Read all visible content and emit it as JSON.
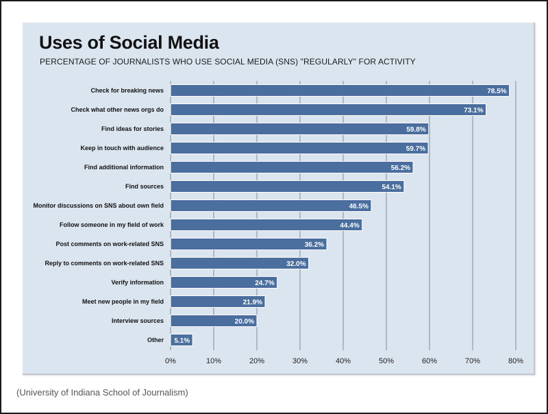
{
  "chart_data": {
    "type": "bar",
    "orientation": "horizontal",
    "title": "Uses of Social Media",
    "subtitle": "PERCENTAGE OF JOURNALISTS WHO USE SOCIAL MEDIA (SNS) \"REGULARLY\" FOR ACTIVITY",
    "categories": [
      "Check for breaking news",
      "Check what other news orgs do",
      "Find ideas for stories",
      "Keep in touch with audience",
      "Find additional information",
      "Find sources",
      "Monitor discussions on SNS about own field",
      "Follow someone in my field of work",
      "Post comments on work-related SNS",
      "Reply to comments on work-related SNS",
      "Verify information",
      "Meet new people in my field",
      "Interview sources",
      "Other"
    ],
    "values": [
      78.5,
      73.1,
      59.8,
      59.7,
      56.2,
      54.1,
      46.5,
      44.4,
      36.2,
      32.0,
      24.7,
      21.9,
      20.0,
      5.1
    ],
    "value_labels": [
      "78.5%",
      "73.1%",
      "59.8%",
      "59.7%",
      "56.2%",
      "54.1%",
      "46.5%",
      "44.4%",
      "36.2%",
      "32.0%",
      "24.7%",
      "21.9%",
      "20.0%",
      "5.1%"
    ],
    "xlim": [
      0,
      80
    ],
    "xticks": [
      0,
      10,
      20,
      30,
      40,
      50,
      60,
      70,
      80
    ],
    "xtick_labels": [
      "0%",
      "10%",
      "20%",
      "30%",
      "40%",
      "50%",
      "60%",
      "70%",
      "80%"
    ],
    "grid": "vertical",
    "bar_color": "#4a6f9f",
    "background_color": "#dbe5f0"
  },
  "source": "(University of Indiana School of Journalism)"
}
